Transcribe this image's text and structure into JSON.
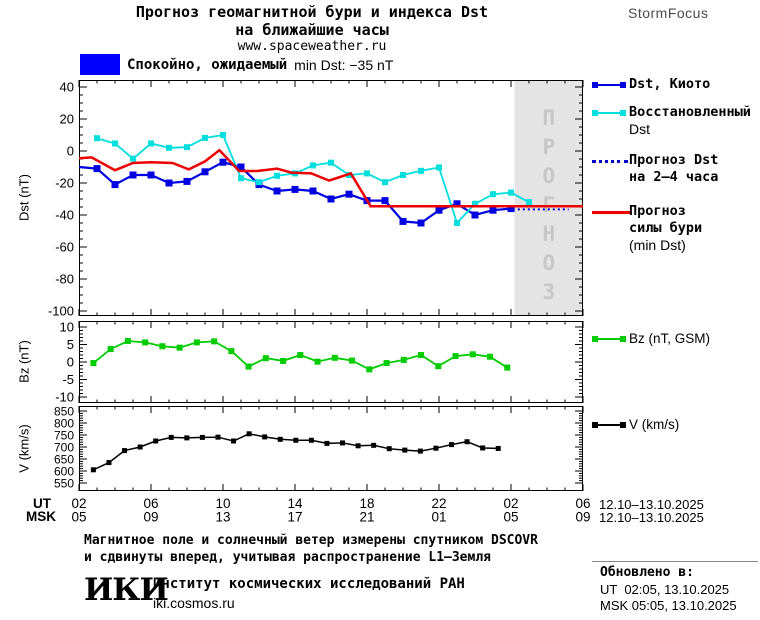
{
  "header": {
    "title_line1": "Прогноз геомагнитной бури и индекса Dst",
    "title_line2": "на ближайшие часы",
    "site": "www.spaceweather.ru",
    "brand": "StormFocus"
  },
  "status": {
    "label": "Спокойно, ожидаемый",
    "value": "min Dst: −35 nT",
    "box_color": "#0000ff"
  },
  "colors": {
    "dst_kyoto": "#0000e0",
    "dst_restored": "#00dede",
    "dst_forecast": "#0000c8",
    "storm_forecast": "#ee0000",
    "bz": "#00cc00",
    "v": "#000000",
    "forecast_bg": "#e4e4e4",
    "watermark_text": "#c7c7c7"
  },
  "axis": {
    "ut_label": "UT",
    "msk_label": "MSK",
    "ut_date": "12.10–13.10.2025",
    "msk_date": "12.10–13.10.2025"
  },
  "legend": {
    "dst_kyoto": "Dst, Киото",
    "restored_line1": "Восстановленный",
    "restored_line2": "Dst",
    "forecast_line1": "Прогноз Dst",
    "forecast_line2": "на 2–4 часа",
    "storm_line1": "Прогноз",
    "storm_line2": "силы бури",
    "storm_line3": "(min Dst)",
    "bz": "Bz (nT, GSM)",
    "v": "V (km/s)"
  },
  "footer": {
    "note1": "Магнитное поле и солнечный ветер измерены спутником DSCOVR",
    "note2": "и сдвинуты вперед, учитывая распространение L1–Земля",
    "logo": "ИКИ",
    "org_name": "Институт космических исследований РАН",
    "org_site": "iki.cosmos.ru",
    "updated_title": "Обновлено в:",
    "updated_ut": "UT  02:05, 13.10.2025",
    "updated_msk": "MSK 05:05, 13.10.2025"
  },
  "chart_data": {
    "type": "line",
    "title": "Прогноз геомагнитной бури и индекса Dst на ближайшие часы",
    "x_axis": {
      "hours_span": 28,
      "major_every_hours": 4,
      "ut_labels": [
        "02",
        "06",
        "10",
        "14",
        "18",
        "22",
        "02",
        "06"
      ],
      "msk_labels": [
        "05",
        "09",
        "13",
        "17",
        "21",
        "01",
        "05",
        "09"
      ]
    },
    "panels": [
      {
        "name": "dst",
        "ylabel": "Dst (nT)",
        "ymin": -100,
        "ymax": 40,
        "yticks": [
          40,
          20,
          0,
          -20,
          -40,
          -60,
          -80,
          -100
        ],
        "minor_step": 5,
        "forecast_region": {
          "from_hour": 24.2,
          "watermark": "ПРОГНОЗ"
        },
        "series": [
          {
            "key": "dst_kyoto",
            "label": "Dst, Киото",
            "color": "#0000e0",
            "marker": 7,
            "width": 2.2,
            "x0": 1,
            "dx": 1,
            "edge_start": [
              0,
              -10
            ],
            "values": [
              -11,
              -21,
              -15,
              -15,
              -20,
              -19,
              -13,
              -7,
              -10,
              -21,
              -25,
              -24,
              -25,
              -30,
              -27,
              -31,
              -31,
              -44,
              -45,
              -37,
              -33,
              -40,
              -37,
              -36
            ]
          },
          {
            "key": "dst_restored",
            "label": "Восстановленный Dst",
            "color": "#00dede",
            "marker": 6,
            "width": 1.8,
            "x0": 1,
            "dx": 1,
            "values": [
              8,
              4.7,
              -4.8,
              4.7,
              2,
              2.4,
              8.2,
              10,
              -17,
              -19.5,
              -15.5,
              -14,
              -9,
              -7.3,
              -15,
              -14,
              -19.5,
              -15,
              -12.4,
              -10.3,
              -45,
              -33,
              -27,
              -26,
              -32
            ]
          },
          {
            "key": "storm_forecast",
            "label": "Прогноз силы бури (min Dst)",
            "color": "#ee0000",
            "width": 2.5,
            "xs": [
              0,
              0.7,
              2.0,
              3.0,
              4.0,
              5.2,
              6.1,
              7.0,
              7.8,
              8.9,
              9.9,
              11.0,
              11.8,
              12.9,
              13.9,
              15.1,
              16.2,
              28
            ],
            "ys": [
              -4.5,
              -4,
              -12,
              -7.5,
              -7,
              -7.5,
              -11.5,
              -6.5,
              0.5,
              -12.5,
              -12.5,
              -11,
              -13.5,
              -14,
              -18.5,
              -14,
              -34.5,
              -34.5
            ]
          },
          {
            "key": "dst_forecast",
            "label": "Прогноз Dst на 2–4 часа",
            "color": "#0000c8",
            "width": 2,
            "dash": "2 3",
            "xs": [
              24.1,
              27.2
            ],
            "ys": [
              -36.5,
              -36.5
            ]
          }
        ]
      },
      {
        "name": "bz",
        "ylabel": "Bz (nT)",
        "ymin": -10,
        "ymax": 10,
        "yticks": [
          10,
          5,
          0,
          -5,
          -10
        ],
        "minor_step": 1,
        "series": [
          {
            "key": "bz",
            "label": "Bz (nT, GSM)",
            "color": "#00cc00",
            "marker": 6,
            "width": 1.8,
            "x0": 0.8,
            "dx": 0.958,
            "values": [
              -0.3,
              3.7,
              6,
              5.6,
              4.5,
              4.1,
              5.6,
              5.9,
              3.1,
              -1.3,
              1.1,
              0.3,
              2,
              0.1,
              1.2,
              0.4,
              -2.1,
              -0.3,
              0.6,
              2,
              -1.2,
              1.7,
              2.2,
              1.5,
              -1.6
            ]
          }
        ]
      },
      {
        "name": "v",
        "ylabel": "V (km/s)",
        "ymin": 550,
        "ymax": 850,
        "yticks": [
          850,
          800,
          750,
          700,
          650,
          600,
          550
        ],
        "minor_step": 10,
        "series": [
          {
            "key": "v",
            "label": "V (km/s)",
            "color": "#000000",
            "marker": 5,
            "width": 1.5,
            "x0": 0.8,
            "dx": 0.865,
            "values": [
              605,
              635,
              685,
              700,
              725,
              740,
              738,
              740,
              741,
              725,
              755,
              742,
              732,
              728,
              728,
              715,
              717,
              705,
              707,
              693,
              687,
              683,
              695,
              710,
              722,
              696,
              694
            ]
          }
        ]
      }
    ]
  }
}
